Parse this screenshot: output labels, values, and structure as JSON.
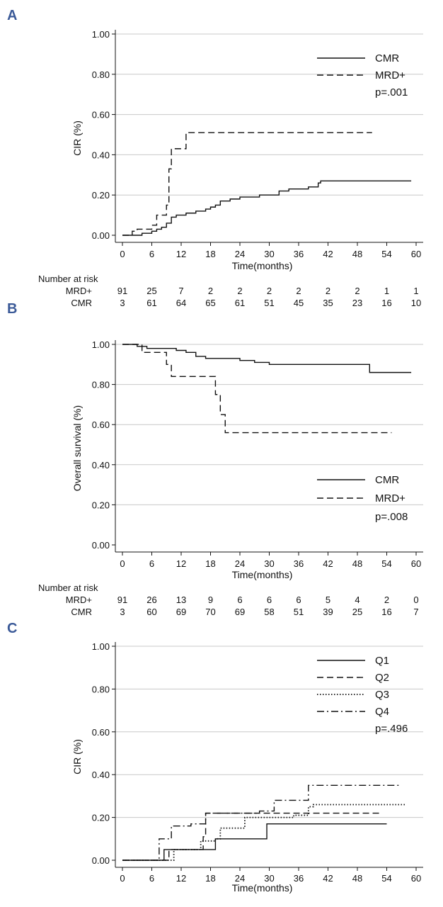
{
  "colors": {
    "panel_letter": "#3b5a98",
    "grid": "#c8c8c8",
    "line": "#111111"
  },
  "chart_data": [
    {
      "panel": "A",
      "type": "line",
      "ylabel": "CIR (%)",
      "xlabel": "Time(months)",
      "xlim": [
        0,
        60
      ],
      "ylim": [
        0,
        1
      ],
      "x_ticks": [
        0,
        6,
        12,
        18,
        24,
        30,
        36,
        42,
        48,
        54,
        60
      ],
      "y_ticks": [
        "0.00",
        "0.20",
        "0.40",
        "0.60",
        "0.80",
        "1.00"
      ],
      "y_tick_values": [
        0,
        0.2,
        0.4,
        0.6,
        0.8,
        1.0
      ],
      "grid": true,
      "legend_position": "top-right",
      "series": [
        {
          "name": "CMR",
          "style": "solid",
          "steps": [
            [
              0,
              0
            ],
            [
              3,
              0
            ],
            [
              4,
              0.01
            ],
            [
              5,
              0.01
            ],
            [
              6,
              0.02
            ],
            [
              7,
              0.03
            ],
            [
              8,
              0.04
            ],
            [
              9,
              0.06
            ],
            [
              10,
              0.09
            ],
            [
              11,
              0.1
            ],
            [
              13,
              0.11
            ],
            [
              15,
              0.12
            ],
            [
              17,
              0.13
            ],
            [
              18,
              0.14
            ],
            [
              19,
              0.15
            ],
            [
              20,
              0.17
            ],
            [
              22,
              0.18
            ],
            [
              24,
              0.19
            ],
            [
              28,
              0.2
            ],
            [
              32,
              0.22
            ],
            [
              34,
              0.23
            ],
            [
              38,
              0.24
            ],
            [
              40,
              0.26
            ],
            [
              40.5,
              0.27
            ],
            [
              59,
              0.27
            ]
          ]
        },
        {
          "name": "MRD+",
          "style": "dashed",
          "steps": [
            [
              0,
              0
            ],
            [
              2,
              0.02
            ],
            [
              3,
              0.03
            ],
            [
              6,
              0.05
            ],
            [
              7,
              0.1
            ],
            [
              9,
              0.15
            ],
            [
              9.5,
              0.33
            ],
            [
              10,
              0.43
            ],
            [
              13,
              0.51
            ],
            [
              51,
              0.51
            ]
          ]
        }
      ],
      "annotation": "p=.001",
      "risk_table": {
        "title": "Number at risk",
        "rows": [
          {
            "label": "MRD+",
            "values": [
              "91",
              "25",
              "7",
              "2",
              "2",
              "2",
              "2",
              "2",
              "2",
              "1",
              "1"
            ]
          },
          {
            "label": "CMR",
            "values": [
              "3",
              "61",
              "64",
              "65",
              "61",
              "51",
              "45",
              "35",
              "23",
              "16",
              "10"
            ]
          }
        ]
      }
    },
    {
      "panel": "B",
      "type": "line",
      "ylabel": "Overall survival (%)",
      "xlabel": "Time(months)",
      "xlim": [
        0,
        60
      ],
      "ylim": [
        0,
        1
      ],
      "x_ticks": [
        0,
        6,
        12,
        18,
        24,
        30,
        36,
        42,
        48,
        54,
        60
      ],
      "y_ticks": [
        "0.00",
        "0.20",
        "0.40",
        "0.60",
        "0.80",
        "1.00"
      ],
      "y_tick_values": [
        0,
        0.2,
        0.4,
        0.6,
        0.8,
        1.0
      ],
      "grid": true,
      "legend_position": "bottom-right",
      "series": [
        {
          "name": "CMR",
          "style": "solid",
          "steps": [
            [
              0,
              1
            ],
            [
              3,
              0.99
            ],
            [
              5,
              0.98
            ],
            [
              11,
              0.97
            ],
            [
              13,
              0.96
            ],
            [
              15,
              0.94
            ],
            [
              17,
              0.93
            ],
            [
              24,
              0.92
            ],
            [
              27,
              0.91
            ],
            [
              30,
              0.9
            ],
            [
              36,
              0.9
            ],
            [
              50,
              0.9
            ],
            [
              50.5,
              0.86
            ],
            [
              59,
              0.86
            ]
          ]
        },
        {
          "name": "MRD+",
          "style": "dashed",
          "steps": [
            [
              0,
              1
            ],
            [
              4,
              0.96
            ],
            [
              9,
              0.9
            ],
            [
              10,
              0.84
            ],
            [
              18,
              0.84
            ],
            [
              19,
              0.75
            ],
            [
              20,
              0.65
            ],
            [
              21,
              0.56
            ],
            [
              55,
              0.56
            ]
          ]
        }
      ],
      "annotation": "p=.008",
      "risk_table": {
        "title": "Number at risk",
        "rows": [
          {
            "label": "MRD+",
            "values": [
              "91",
              "26",
              "13",
              "9",
              "6",
              "6",
              "6",
              "5",
              "4",
              "2",
              "0"
            ]
          },
          {
            "label": "CMR",
            "values": [
              "3",
              "60",
              "69",
              "70",
              "69",
              "58",
              "51",
              "39",
              "25",
              "16",
              "7"
            ]
          }
        ]
      }
    },
    {
      "panel": "C",
      "type": "line",
      "ylabel": "CIR (%)",
      "xlabel": "Time(months)",
      "xlim": [
        0,
        60
      ],
      "ylim": [
        0,
        1
      ],
      "x_ticks": [
        0,
        6,
        12,
        18,
        24,
        30,
        36,
        42,
        48,
        54,
        60
      ],
      "y_ticks": [
        "0.00",
        "0.20",
        "0.40",
        "0.60",
        "0.80",
        "1.00"
      ],
      "y_tick_values": [
        0,
        0.2,
        0.4,
        0.6,
        0.8,
        1.0
      ],
      "grid": true,
      "legend_position": "top-right",
      "series": [
        {
          "name": "Q1",
          "style": "solid",
          "steps": [
            [
              0,
              0
            ],
            [
              8,
              0
            ],
            [
              8.5,
              0.05
            ],
            [
              18,
              0.05
            ],
            [
              19,
              0.1
            ],
            [
              29,
              0.1
            ],
            [
              29.5,
              0.17
            ],
            [
              54,
              0.17
            ]
          ]
        },
        {
          "name": "Q2",
          "style": "dashed",
          "steps": [
            [
              0,
              0
            ],
            [
              9,
              0
            ],
            [
              9.5,
              0.05
            ],
            [
              16,
              0.05
            ],
            [
              16.5,
              0.11
            ],
            [
              17,
              0.22
            ],
            [
              35,
              0.22
            ],
            [
              53,
              0.22
            ]
          ]
        },
        {
          "name": "Q3",
          "style": "dotted",
          "steps": [
            [
              0,
              0
            ],
            [
              10,
              0
            ],
            [
              10.5,
              0.05
            ],
            [
              15,
              0.05
            ],
            [
              16,
              0.09
            ],
            [
              19,
              0.1
            ],
            [
              20,
              0.15
            ],
            [
              25,
              0.2
            ],
            [
              35,
              0.21
            ],
            [
              38,
              0.25
            ],
            [
              39,
              0.26
            ],
            [
              58,
              0.26
            ]
          ]
        },
        {
          "name": "Q4",
          "style": "dashdot",
          "steps": [
            [
              0,
              0
            ],
            [
              7,
              0
            ],
            [
              7.5,
              0.1
            ],
            [
              10,
              0.16
            ],
            [
              14,
              0.17
            ],
            [
              17,
              0.22
            ],
            [
              28,
              0.23
            ],
            [
              31,
              0.28
            ],
            [
              38,
              0.35
            ],
            [
              57,
              0.35
            ]
          ]
        }
      ],
      "annotation": "p=.496"
    }
  ]
}
